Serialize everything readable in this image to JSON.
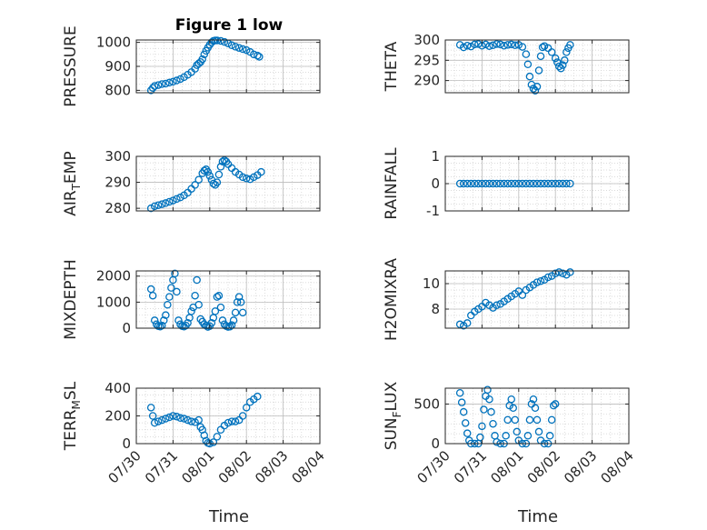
{
  "figure_title": "Figure 1 low",
  "time_label": "Time",
  "marker_color": "#0072bd",
  "x_ticks": [
    "07/30",
    "07/31",
    "08/01",
    "08/02",
    "08/03",
    "08/04"
  ],
  "chart_data": [
    {
      "type": "scatter",
      "ylabel": "PRESSURE",
      "xlim": [
        "07/30",
        "08/04"
      ],
      "ylim": [
        790,
        1010
      ],
      "yticks": [
        "800",
        "900",
        "1000"
      ],
      "grid": true,
      "x_start_day": 0.35,
      "x_end_day": 3.65,
      "points": [
        [
          0.4,
          800
        ],
        [
          0.45,
          810
        ],
        [
          0.5,
          818
        ],
        [
          0.6,
          822
        ],
        [
          0.7,
          826
        ],
        [
          0.8,
          828
        ],
        [
          0.9,
          832
        ],
        [
          1.0,
          836
        ],
        [
          1.1,
          841
        ],
        [
          1.2,
          847
        ],
        [
          1.3,
          855
        ],
        [
          1.4,
          865
        ],
        [
          1.5,
          876
        ],
        [
          1.6,
          890
        ],
        [
          1.65,
          905
        ],
        [
          1.7,
          912
        ],
        [
          1.75,
          918
        ],
        [
          1.8,
          930
        ],
        [
          1.85,
          950
        ],
        [
          1.9,
          965
        ],
        [
          1.95,
          978
        ],
        [
          2.0,
          990
        ],
        [
          2.05,
          1000
        ],
        [
          2.1,
          1006
        ],
        [
          2.15,
          1008
        ],
        [
          2.2,
          1008
        ],
        [
          2.3,
          1006
        ],
        [
          2.4,
          1002
        ],
        [
          2.5,
          996
        ],
        [
          2.6,
          988
        ],
        [
          2.7,
          982
        ],
        [
          2.8,
          977
        ],
        [
          2.9,
          972
        ],
        [
          3.0,
          968
        ],
        [
          3.1,
          960
        ],
        [
          3.2,
          950
        ],
        [
          3.3,
          945
        ],
        [
          3.35,
          940
        ]
      ]
    },
    {
      "type": "scatter",
      "ylabel": "THETA",
      "xlim": [
        "07/30",
        "08/04"
      ],
      "ylim": [
        287,
        300
      ],
      "yticks": [
        "290",
        "295",
        "300"
      ],
      "grid": true,
      "points": [
        [
          0.4,
          298.8
        ],
        [
          0.5,
          298.2
        ],
        [
          0.6,
          298.6
        ],
        [
          0.7,
          298.4
        ],
        [
          0.8,
          298.9
        ],
        [
          0.9,
          299.0
        ],
        [
          1.0,
          298.6
        ],
        [
          1.1,
          298.9
        ],
        [
          1.2,
          298.5
        ],
        [
          1.3,
          298.7
        ],
        [
          1.4,
          299.0
        ],
        [
          1.5,
          298.9
        ],
        [
          1.6,
          298.6
        ],
        [
          1.7,
          298.8
        ],
        [
          1.8,
          298.9
        ],
        [
          1.9,
          298.7
        ],
        [
          2.0,
          298.8
        ],
        [
          2.1,
          298.3
        ],
        [
          2.2,
          296.5
        ],
        [
          2.25,
          294.0
        ],
        [
          2.3,
          291.0
        ],
        [
          2.35,
          289.0
        ],
        [
          2.4,
          288.0
        ],
        [
          2.45,
          287.5
        ],
        [
          2.5,
          288.5
        ],
        [
          2.55,
          292.5
        ],
        [
          2.6,
          296.0
        ],
        [
          2.65,
          298.2
        ],
        [
          2.7,
          298.5
        ],
        [
          2.8,
          298.0
        ],
        [
          2.9,
          297.0
        ],
        [
          3.0,
          295.5
        ],
        [
          3.05,
          294.5
        ],
        [
          3.1,
          293.5
        ],
        [
          3.15,
          293.0
        ],
        [
          3.2,
          293.8
        ],
        [
          3.25,
          295.0
        ],
        [
          3.3,
          297.0
        ],
        [
          3.35,
          298.0
        ],
        [
          3.4,
          298.8
        ]
      ]
    },
    {
      "type": "scatter",
      "ylabel": "AIR_TEMP",
      "xlim": [
        "07/30",
        "08/04"
      ],
      "ylim": [
        279,
        300
      ],
      "yticks": [
        "280",
        "290",
        "300"
      ],
      "grid": true,
      "points": [
        [
          0.4,
          280
        ],
        [
          0.5,
          280.8
        ],
        [
          0.6,
          281.2
        ],
        [
          0.7,
          281.6
        ],
        [
          0.8,
          282
        ],
        [
          0.9,
          282.5
        ],
        [
          1.0,
          283
        ],
        [
          1.1,
          283.6
        ],
        [
          1.2,
          284.2
        ],
        [
          1.3,
          285
        ],
        [
          1.4,
          286
        ],
        [
          1.5,
          287.5
        ],
        [
          1.6,
          289
        ],
        [
          1.7,
          291
        ],
        [
          1.8,
          293.5
        ],
        [
          1.85,
          294.5
        ],
        [
          1.9,
          295
        ],
        [
          1.95,
          294
        ],
        [
          2.0,
          292.5
        ],
        [
          2.05,
          291
        ],
        [
          2.1,
          289.5
        ],
        [
          2.15,
          289
        ],
        [
          2.2,
          290
        ],
        [
          2.25,
          293
        ],
        [
          2.3,
          296
        ],
        [
          2.35,
          298
        ],
        [
          2.4,
          298.5
        ],
        [
          2.45,
          298
        ],
        [
          2.5,
          297
        ],
        [
          2.6,
          295.5
        ],
        [
          2.7,
          294
        ],
        [
          2.8,
          293
        ],
        [
          2.9,
          292
        ],
        [
          3.0,
          291.5
        ],
        [
          3.1,
          291.2
        ],
        [
          3.2,
          292
        ],
        [
          3.3,
          292.8
        ],
        [
          3.4,
          294
        ]
      ]
    },
    {
      "type": "scatter",
      "ylabel": "RAINFALL",
      "xlim": [
        "07/30",
        "08/04"
      ],
      "ylim": [
        -1,
        1
      ],
      "yticks": [
        "-1",
        "0",
        "1"
      ],
      "grid": true,
      "points": [
        [
          0.4,
          0
        ],
        [
          0.5,
          0
        ],
        [
          0.6,
          0
        ],
        [
          0.7,
          0
        ],
        [
          0.8,
          0
        ],
        [
          0.9,
          0
        ],
        [
          1.0,
          0
        ],
        [
          1.1,
          0
        ],
        [
          1.2,
          0
        ],
        [
          1.3,
          0
        ],
        [
          1.4,
          0
        ],
        [
          1.5,
          0
        ],
        [
          1.6,
          0
        ],
        [
          1.7,
          0
        ],
        [
          1.8,
          0
        ],
        [
          1.9,
          0
        ],
        [
          2.0,
          0
        ],
        [
          2.1,
          0
        ],
        [
          2.2,
          0
        ],
        [
          2.3,
          0
        ],
        [
          2.4,
          0
        ],
        [
          2.5,
          0
        ],
        [
          2.6,
          0
        ],
        [
          2.7,
          0
        ],
        [
          2.8,
          0
        ],
        [
          2.9,
          0
        ],
        [
          3.0,
          0
        ],
        [
          3.1,
          0
        ],
        [
          3.2,
          0
        ],
        [
          3.3,
          0
        ],
        [
          3.4,
          0
        ]
      ]
    },
    {
      "type": "scatter",
      "ylabel": "MIXDEPTH",
      "xlim": [
        "07/30",
        "08/04"
      ],
      "ylim": [
        0,
        2200
      ],
      "yticks": [
        "0",
        "1000",
        "2000"
      ],
      "grid": true,
      "points": [
        [
          0.4,
          1500
        ],
        [
          0.45,
          1250
        ],
        [
          0.5,
          300
        ],
        [
          0.55,
          150
        ],
        [
          0.6,
          80
        ],
        [
          0.65,
          60
        ],
        [
          0.7,
          100
        ],
        [
          0.75,
          300
        ],
        [
          0.8,
          500
        ],
        [
          0.85,
          900
        ],
        [
          0.9,
          1200
        ],
        [
          0.95,
          1550
        ],
        [
          1.0,
          1850
        ],
        [
          1.05,
          2100
        ],
        [
          1.1,
          1400
        ],
        [
          1.15,
          300
        ],
        [
          1.2,
          150
        ],
        [
          1.25,
          80
        ],
        [
          1.3,
          60
        ],
        [
          1.35,
          100
        ],
        [
          1.4,
          200
        ],
        [
          1.45,
          400
        ],
        [
          1.5,
          650
        ],
        [
          1.55,
          800
        ],
        [
          1.6,
          1250
        ],
        [
          1.65,
          1850
        ],
        [
          1.7,
          900
        ],
        [
          1.75,
          350
        ],
        [
          1.8,
          250
        ],
        [
          1.85,
          150
        ],
        [
          1.9,
          100
        ],
        [
          1.95,
          50
        ],
        [
          2.0,
          80
        ],
        [
          2.05,
          200
        ],
        [
          2.1,
          400
        ],
        [
          2.15,
          650
        ],
        [
          2.2,
          1200
        ],
        [
          2.25,
          1250
        ],
        [
          2.3,
          800
        ],
        [
          2.35,
          300
        ],
        [
          2.4,
          150
        ],
        [
          2.45,
          80
        ],
        [
          2.5,
          50
        ],
        [
          2.55,
          60
        ],
        [
          2.6,
          120
        ],
        [
          2.65,
          300
        ],
        [
          2.7,
          600
        ],
        [
          2.75,
          1000
        ],
        [
          2.8,
          1200
        ],
        [
          2.85,
          1000
        ],
        [
          2.9,
          600
        ]
      ]
    },
    {
      "type": "scatter",
      "ylabel": "H2OMIXRA",
      "xlim": [
        "07/30",
        "08/04"
      ],
      "ylim": [
        6.5,
        11
      ],
      "yticks": [
        "8",
        "10"
      ],
      "grid": true,
      "points": [
        [
          0.4,
          6.8
        ],
        [
          0.5,
          6.7
        ],
        [
          0.6,
          6.9
        ],
        [
          0.7,
          7.5
        ],
        [
          0.8,
          7.8
        ],
        [
          0.9,
          8.0
        ],
        [
          1.0,
          8.2
        ],
        [
          1.1,
          8.5
        ],
        [
          1.2,
          8.3
        ],
        [
          1.3,
          8.1
        ],
        [
          1.4,
          8.3
        ],
        [
          1.5,
          8.4
        ],
        [
          1.6,
          8.6
        ],
        [
          1.7,
          8.8
        ],
        [
          1.8,
          9.0
        ],
        [
          1.9,
          9.2
        ],
        [
          2.0,
          9.4
        ],
        [
          2.1,
          9.1
        ],
        [
          2.2,
          9.5
        ],
        [
          2.3,
          9.7
        ],
        [
          2.4,
          9.9
        ],
        [
          2.5,
          10.1
        ],
        [
          2.6,
          10.2
        ],
        [
          2.7,
          10.3
        ],
        [
          2.8,
          10.5
        ],
        [
          2.9,
          10.6
        ],
        [
          3.0,
          10.8
        ],
        [
          3.1,
          10.9
        ],
        [
          3.2,
          10.8
        ],
        [
          3.3,
          10.7
        ],
        [
          3.4,
          10.9
        ]
      ]
    },
    {
      "type": "scatter",
      "ylabel": "TERR_MSL",
      "xlim": [
        "07/30",
        "08/04"
      ],
      "ylim": [
        0,
        400
      ],
      "yticks": [
        "0",
        "200",
        "400"
      ],
      "grid": true,
      "points": [
        [
          0.4,
          260
        ],
        [
          0.45,
          200
        ],
        [
          0.5,
          150
        ],
        [
          0.6,
          160
        ],
        [
          0.7,
          170
        ],
        [
          0.8,
          180
        ],
        [
          0.9,
          190
        ],
        [
          1.0,
          200
        ],
        [
          1.1,
          195
        ],
        [
          1.2,
          185
        ],
        [
          1.3,
          180
        ],
        [
          1.4,
          170
        ],
        [
          1.5,
          160
        ],
        [
          1.6,
          155
        ],
        [
          1.7,
          170
        ],
        [
          1.75,
          120
        ],
        [
          1.8,
          100
        ],
        [
          1.85,
          60
        ],
        [
          1.9,
          20
        ],
        [
          1.95,
          5
        ],
        [
          2.0,
          0
        ],
        [
          2.1,
          10
        ],
        [
          2.2,
          50
        ],
        [
          2.3,
          100
        ],
        [
          2.4,
          130
        ],
        [
          2.5,
          150
        ],
        [
          2.6,
          160
        ],
        [
          2.7,
          160
        ],
        [
          2.8,
          170
        ],
        [
          2.9,
          200
        ],
        [
          3.0,
          260
        ],
        [
          3.1,
          300
        ],
        [
          3.2,
          320
        ],
        [
          3.3,
          340
        ]
      ]
    },
    {
      "type": "scatter",
      "ylabel": "SUN_FLUX",
      "xlim": [
        "07/30",
        "08/04"
      ],
      "ylim": [
        0,
        700
      ],
      "yticks": [
        "0",
        "500"
      ],
      "grid": true,
      "points": [
        [
          0.4,
          640
        ],
        [
          0.45,
          520
        ],
        [
          0.5,
          400
        ],
        [
          0.55,
          260
        ],
        [
          0.6,
          130
        ],
        [
          0.65,
          40
        ],
        [
          0.7,
          0
        ],
        [
          0.8,
          0
        ],
        [
          0.9,
          0
        ],
        [
          0.95,
          80
        ],
        [
          1.0,
          220
        ],
        [
          1.05,
          430
        ],
        [
          1.1,
          600
        ],
        [
          1.15,
          680
        ],
        [
          1.2,
          560
        ],
        [
          1.25,
          400
        ],
        [
          1.3,
          250
        ],
        [
          1.35,
          100
        ],
        [
          1.4,
          20
        ],
        [
          1.5,
          0
        ],
        [
          1.6,
          0
        ],
        [
          1.65,
          100
        ],
        [
          1.7,
          300
        ],
        [
          1.75,
          480
        ],
        [
          1.8,
          560
        ],
        [
          1.85,
          450
        ],
        [
          1.9,
          300
        ],
        [
          1.95,
          150
        ],
        [
          2.0,
          40
        ],
        [
          2.1,
          0
        ],
        [
          2.2,
          0
        ],
        [
          2.25,
          100
        ],
        [
          2.3,
          300
        ],
        [
          2.35,
          500
        ],
        [
          2.4,
          560
        ],
        [
          2.45,
          450
        ],
        [
          2.5,
          300
        ],
        [
          2.55,
          150
        ],
        [
          2.6,
          40
        ],
        [
          2.7,
          0
        ],
        [
          2.8,
          0
        ],
        [
          2.85,
          100
        ],
        [
          2.9,
          300
        ],
        [
          2.95,
          480
        ],
        [
          3.0,
          500
        ]
      ]
    }
  ]
}
